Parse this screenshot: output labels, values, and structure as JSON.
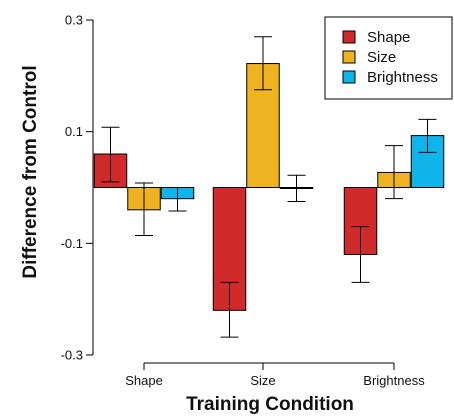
{
  "chart_data": {
    "type": "bar",
    "xlabel": "Training Condition",
    "ylabel": "Difference from Control",
    "categories": [
      "Shape",
      "Size",
      "Brightness"
    ],
    "ylim": [
      -0.3,
      0.3
    ],
    "yticks": [
      "-0.3",
      "-0.1",
      "0.1",
      "0.3"
    ],
    "ytick_values": [
      -0.3,
      -0.1,
      0.1,
      0.3
    ],
    "series": [
      {
        "name": "Shape",
        "color": "#d12a2a",
        "values": [
          0.06,
          -0.22,
          -0.12
        ],
        "error": [
          [
            0.01,
            0.108
          ],
          [
            -0.268,
            -0.17
          ],
          [
            -0.17,
            -0.07
          ]
        ]
      },
      {
        "name": "Size",
        "color": "#efb321",
        "values": [
          -0.04,
          0.222,
          0.027
        ],
        "error": [
          [
            -0.086,
            0.008
          ],
          [
            0.175,
            0.27
          ],
          [
            -0.02,
            0.075
          ]
        ]
      },
      {
        "name": "Brightness",
        "color": "#0fb4ea",
        "values": [
          -0.02,
          -0.001,
          0.093
        ],
        "error": [
          [
            -0.042,
            0.0
          ],
          [
            -0.025,
            0.022
          ],
          [
            0.063,
            0.122
          ]
        ]
      }
    ],
    "legend_position": "top-right"
  }
}
